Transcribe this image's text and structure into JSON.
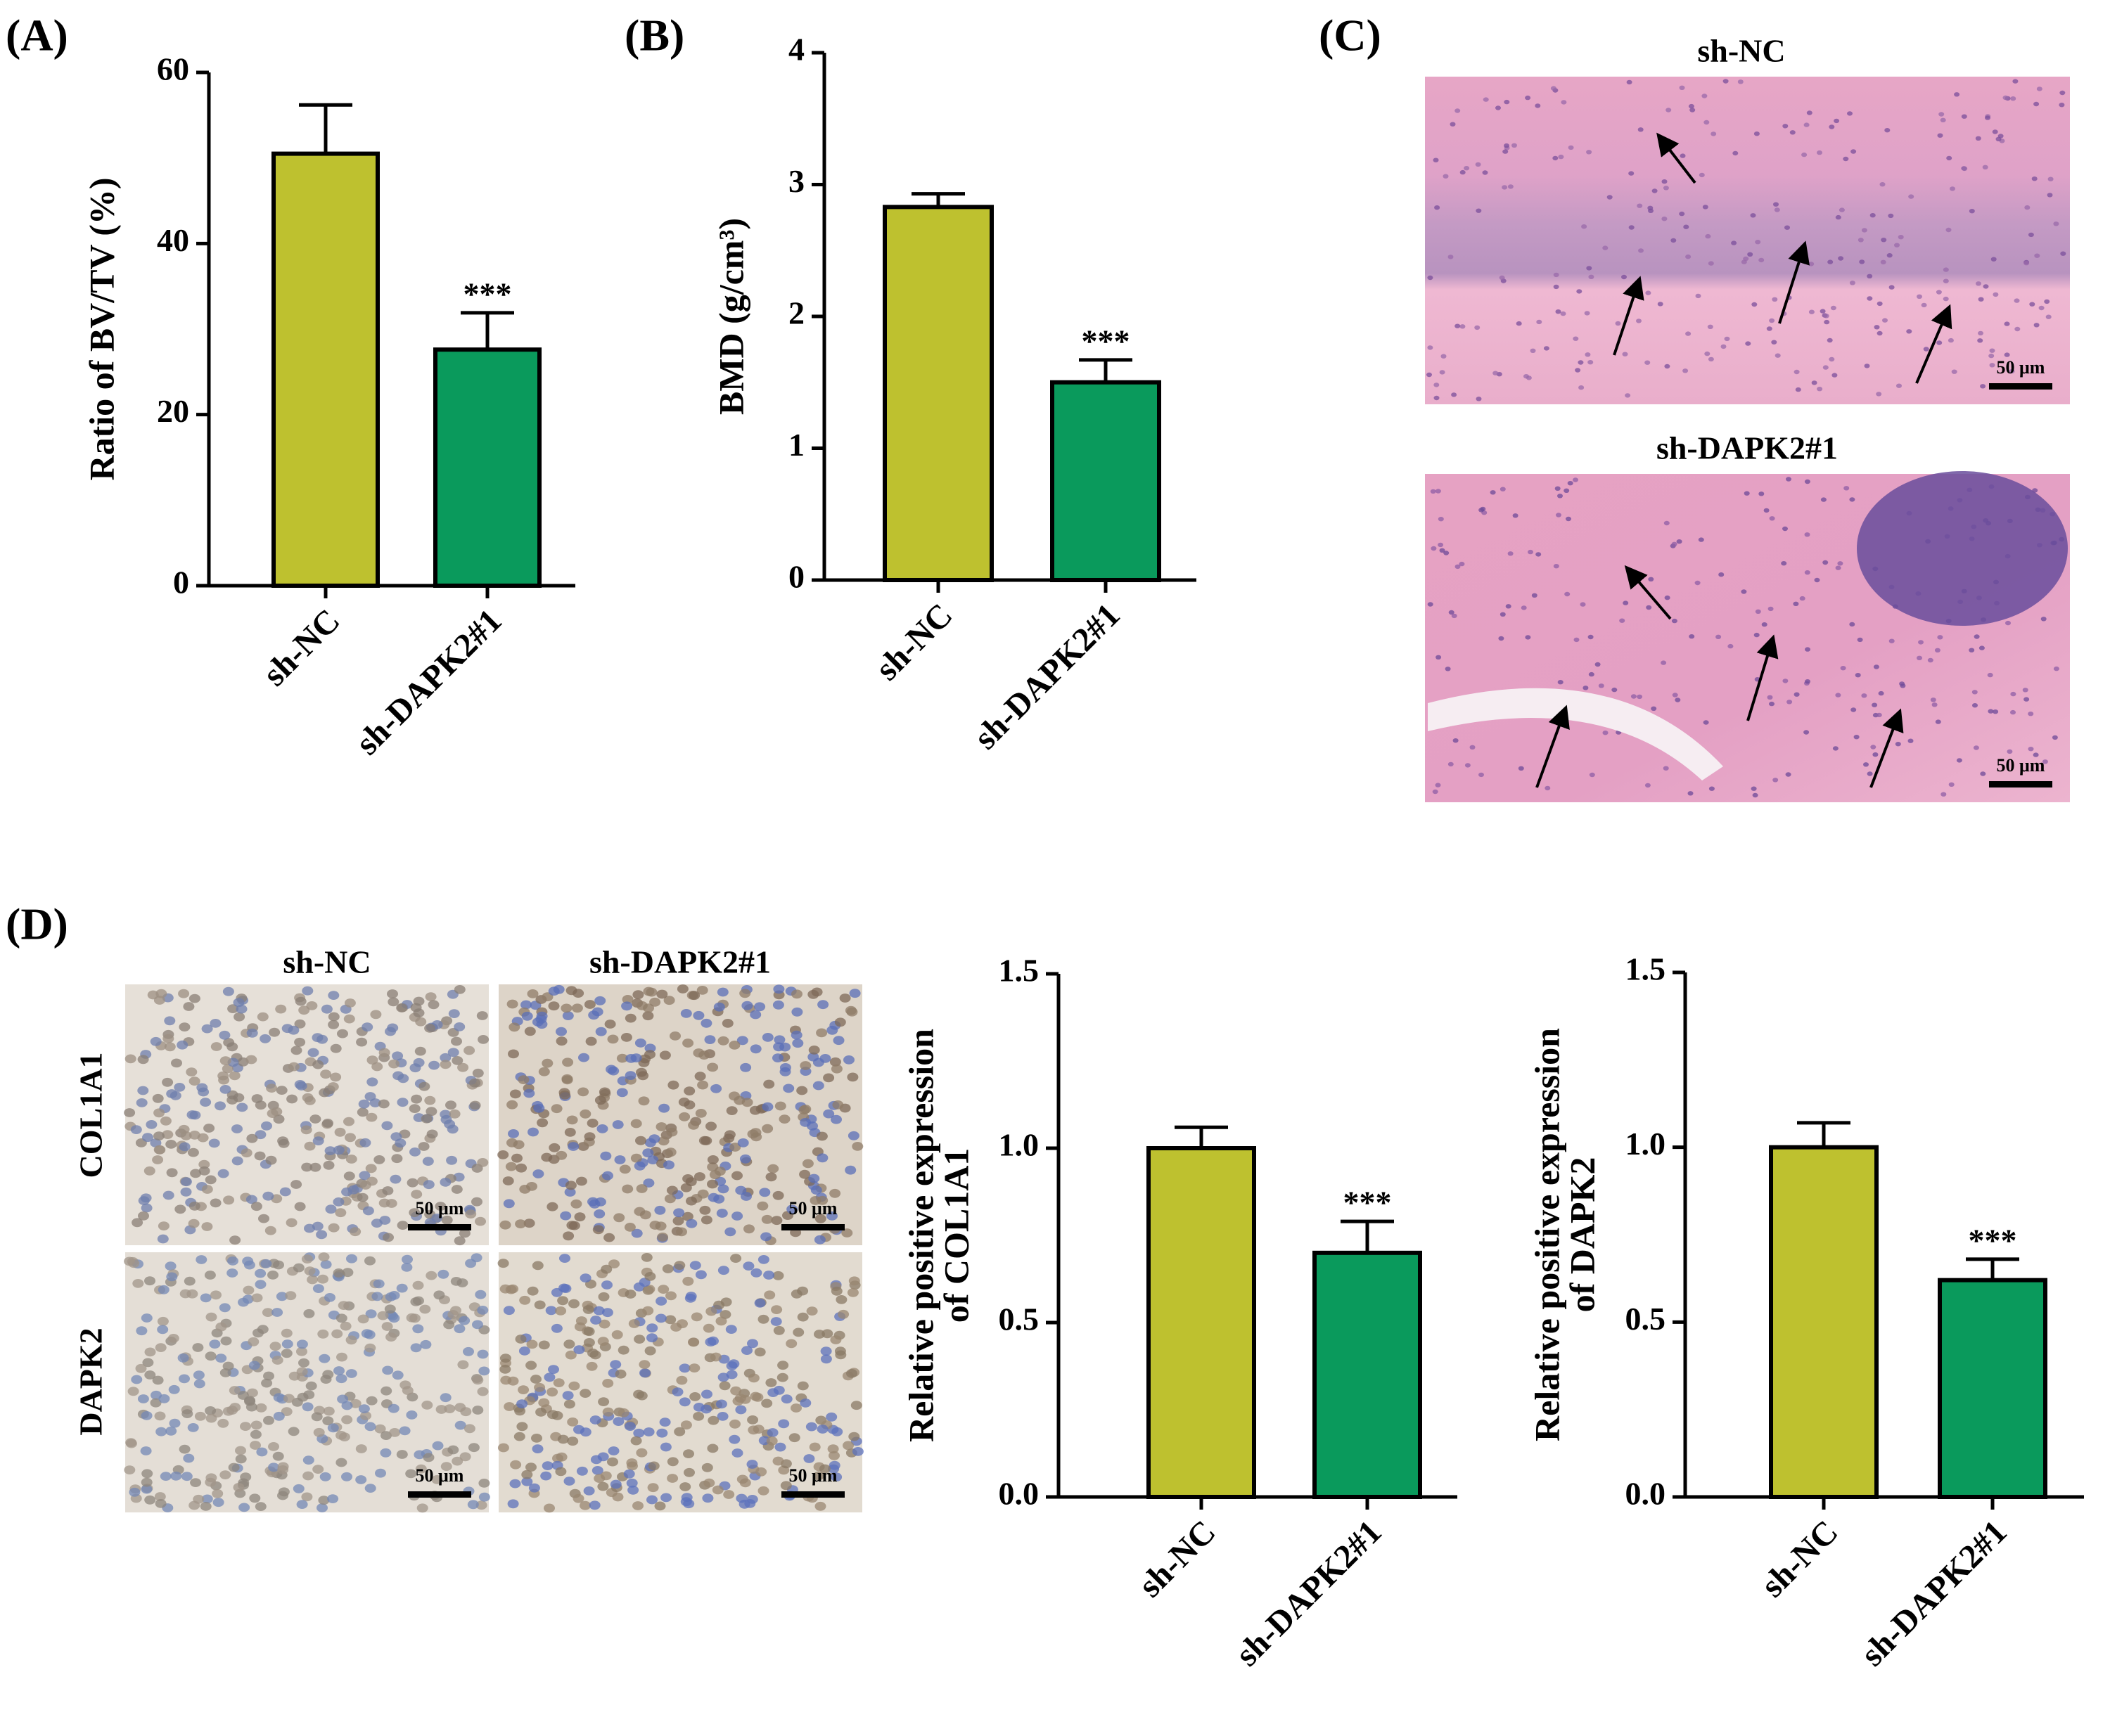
{
  "panel_labels": [
    "(A)",
    "(B)",
    "(C)",
    "(D)"
  ],
  "histology": {
    "panel_c": {
      "groups": [
        "sh-NC",
        "sh-DAPK2#1"
      ],
      "scale_bar": "50 μm"
    },
    "panel_d": {
      "groups": [
        "sh-NC",
        "sh-DAPK2#1"
      ],
      "rows": [
        "COL1A1",
        "DAPK2"
      ],
      "scale_bar": "50 μm"
    }
  },
  "chart_data": [
    {
      "type": "bar",
      "y_label": "Ratio of BV/TV (%)",
      "categories": [
        "sh-NC",
        "sh-DAPK2#1"
      ],
      "values": [
        50.5,
        27.6
      ],
      "errors": [
        5.7,
        4.3
      ],
      "colors": [
        "#bec12f",
        "#0a9a5c"
      ],
      "ylim": [
        0,
        60
      ],
      "yticks": [
        0,
        20,
        40,
        60
      ],
      "annotation": "***"
    },
    {
      "type": "bar",
      "y_label": "BMD (g/cm³)",
      "categories": [
        "sh-NC",
        "sh-DAPK2#1"
      ],
      "values": [
        2.83,
        1.5
      ],
      "errors": [
        0.1,
        0.17
      ],
      "colors": [
        "#bec12f",
        "#0a9a5c"
      ],
      "ylim": [
        0,
        4
      ],
      "yticks": [
        0,
        1,
        2,
        3,
        4
      ],
      "annotation": "***"
    },
    {
      "type": "bar",
      "y_label": [
        "Relative positive expression",
        "of COL1A1"
      ],
      "categories": [
        "sh-NC",
        "sh-DAPK2#1"
      ],
      "values": [
        1.0,
        0.7
      ],
      "errors": [
        0.06,
        0.09
      ],
      "colors": [
        "#bec12f",
        "#0a9a5c"
      ],
      "ylim": [
        0,
        1.5
      ],
      "yticks": [
        {
          "value": 0,
          "label": "0.0"
        },
        {
          "value": 0.5,
          "label": "0.5"
        },
        {
          "value": 1,
          "label": "1.0"
        },
        {
          "value": 1.5,
          "label": "1.5"
        }
      ],
      "annotation": "***"
    },
    {
      "type": "bar",
      "y_label": [
        "Relative positive expression",
        "of DAPK2"
      ],
      "categories": [
        "sh-NC",
        "sh-DAPK2#1"
      ],
      "values": [
        1.0,
        0.62
      ],
      "errors": [
        0.07,
        0.06
      ],
      "colors": [
        "#bec12f",
        "#0a9a5c"
      ],
      "ylim": [
        0,
        1.5
      ],
      "yticks": [
        {
          "value": 0,
          "label": "0.0"
        },
        {
          "value": 0.5,
          "label": "0.5"
        },
        {
          "value": 1,
          "label": "1.0"
        },
        {
          "value": 1.5,
          "label": "1.5"
        }
      ],
      "annotation": "***"
    }
  ]
}
